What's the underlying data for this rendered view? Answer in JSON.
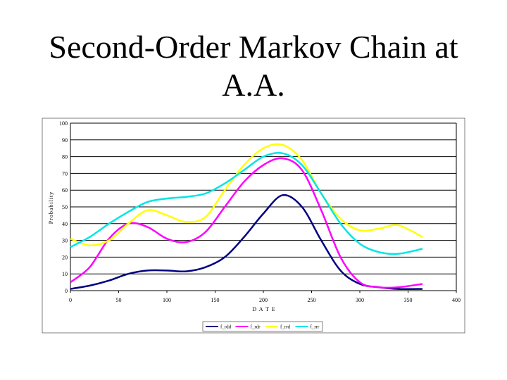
{
  "slide": {
    "title_line1": "Second-Order Markov Chain at",
    "title_line2": "A.A."
  },
  "chart_data": {
    "type": "line",
    "xlabel": "D A T E",
    "ylabel": "Probability",
    "xlim": [
      0,
      400
    ],
    "ylim": [
      0,
      100
    ],
    "xticks": [
      0,
      50,
      100,
      150,
      200,
      250,
      300,
      350,
      400
    ],
    "yticks": [
      0,
      10,
      20,
      30,
      40,
      50,
      60,
      70,
      80,
      90,
      100
    ],
    "grid": "horizontal",
    "legend_position": "bottom",
    "series": [
      {
        "name": "f_rdd",
        "color": "#000080",
        "x": [
          0,
          20,
          40,
          60,
          80,
          100,
          120,
          140,
          160,
          180,
          200,
          220,
          240,
          260,
          280,
          300,
          320,
          340,
          365
        ],
        "values": [
          1,
          3,
          6,
          10,
          12,
          12,
          11.5,
          14,
          20,
          32,
          46,
          57,
          50,
          30,
          12,
          4,
          2,
          1,
          1
        ]
      },
      {
        "name": "f_rdr",
        "color": "#ff00ff",
        "x": [
          0,
          20,
          40,
          60,
          80,
          100,
          120,
          140,
          160,
          180,
          200,
          220,
          240,
          260,
          280,
          300,
          320,
          340,
          365
        ],
        "values": [
          5,
          14,
          31,
          40,
          38,
          31,
          29,
          35,
          50,
          65,
          75,
          79,
          72,
          48,
          20,
          5,
          2,
          2,
          4
        ]
      },
      {
        "name": "f_rrd",
        "color": "#ffff00",
        "x": [
          0,
          20,
          40,
          60,
          80,
          100,
          120,
          140,
          160,
          180,
          200,
          220,
          240,
          260,
          280,
          300,
          320,
          340,
          365
        ],
        "values": [
          31,
          27,
          30,
          40,
          48,
          45,
          41,
          44,
          60,
          75,
          85,
          87,
          78,
          58,
          43,
          36,
          37,
          39,
          32
        ]
      },
      {
        "name": "f_rrr",
        "color": "#00e5e5",
        "x": [
          0,
          20,
          40,
          60,
          80,
          100,
          120,
          140,
          160,
          180,
          200,
          220,
          240,
          260,
          280,
          300,
          320,
          340,
          365
        ],
        "values": [
          26,
          32,
          40,
          47,
          53,
          55,
          56,
          58,
          64,
          72,
          80,
          82,
          75,
          58,
          40,
          28,
          23,
          22,
          25
        ]
      }
    ]
  }
}
